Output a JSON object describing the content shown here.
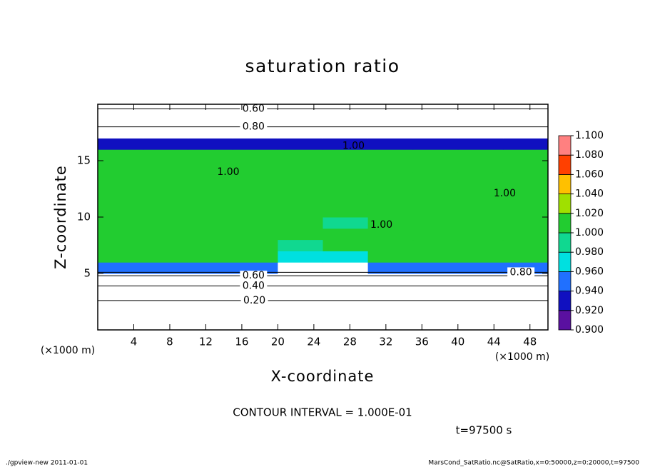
{
  "chart_data": {
    "type": "contour",
    "title": "saturation ratio",
    "xlabel": "X-coordinate",
    "ylabel": "Z-coordinate",
    "xunit": "(×1000 m)",
    "yunit": "(×1000 m)",
    "xlim": [
      0,
      50
    ],
    "ylim": [
      0,
      20
    ],
    "xticks": [
      4,
      8,
      12,
      16,
      20,
      24,
      28,
      32,
      36,
      40,
      44,
      48
    ],
    "yticks": [
      5,
      10,
      15
    ],
    "x": [
      2.5,
      7.5,
      12.5,
      17.5,
      22.5,
      27.5,
      32.5,
      37.5,
      42.5,
      47.5
    ],
    "y": [
      0.5,
      1.5,
      2.5,
      3.5,
      4.5,
      5.5,
      6.5,
      7.5,
      8.5,
      9.5,
      10.5,
      11.5,
      12.5,
      13.5,
      14.5,
      15.5,
      16.5,
      17.5,
      18.5,
      19.5
    ],
    "z_values": [
      [
        0.1,
        0.1,
        0.1,
        0.1,
        0.1,
        0.1,
        0.1,
        0.1,
        0.1,
        0.1
      ],
      [
        0.15,
        0.15,
        0.15,
        0.15,
        0.15,
        0.15,
        0.15,
        0.15,
        0.15,
        0.15
      ],
      [
        0.25,
        0.25,
        0.25,
        0.25,
        0.25,
        0.25,
        0.25,
        0.25,
        0.25,
        0.25
      ],
      [
        0.4,
        0.4,
        0.4,
        0.4,
        0.4,
        0.4,
        0.4,
        0.4,
        0.4,
        0.4
      ],
      [
        0.6,
        0.6,
        0.6,
        0.6,
        0.6,
        0.6,
        0.6,
        0.6,
        0.6,
        0.6
      ],
      [
        0.95,
        0.95,
        0.95,
        0.95,
        0.85,
        0.85,
        0.95,
        0.95,
        0.95,
        0.95
      ],
      [
        1.005,
        1.005,
        1.005,
        1.005,
        0.97,
        0.96,
        1.005,
        1.005,
        1.005,
        1.005
      ],
      [
        1.005,
        1.005,
        1.005,
        1.005,
        0.99,
        1.005,
        1.005,
        1.005,
        1.005,
        1.005
      ],
      [
        1.005,
        1.005,
        1.005,
        1.005,
        1.005,
        1.005,
        1.005,
        1.005,
        1.005,
        1.005
      ],
      [
        1.005,
        1.005,
        1.005,
        1.005,
        1.005,
        0.99,
        1.005,
        1.005,
        1.005,
        1.005
      ],
      [
        1.005,
        1.005,
        1.005,
        1.005,
        1.005,
        1.005,
        1.005,
        1.005,
        1.005,
        1.005
      ],
      [
        1.005,
        1.005,
        1.005,
        1.005,
        1.005,
        1.005,
        1.005,
        1.005,
        1.005,
        1.005
      ],
      [
        1.005,
        1.005,
        1.005,
        1.005,
        1.005,
        1.005,
        1.005,
        1.005,
        1.005,
        1.005
      ],
      [
        1.005,
        1.005,
        1.005,
        1.005,
        1.005,
        1.005,
        1.005,
        1.005,
        1.005,
        1.005
      ],
      [
        1.005,
        1.005,
        1.005,
        1.005,
        1.005,
        1.005,
        1.005,
        1.005,
        1.005,
        1.005
      ],
      [
        1.005,
        1.005,
        1.005,
        1.005,
        1.005,
        1.005,
        1.005,
        1.005,
        1.005,
        1.005
      ],
      [
        0.93,
        0.93,
        0.93,
        0.93,
        0.93,
        0.93,
        0.93,
        0.93,
        0.93,
        0.93
      ],
      [
        0.8,
        0.8,
        0.8,
        0.8,
        0.8,
        0.8,
        0.8,
        0.8,
        0.8,
        0.8
      ],
      [
        0.7,
        0.7,
        0.7,
        0.7,
        0.7,
        0.7,
        0.7,
        0.7,
        0.7,
        0.7
      ],
      [
        0.6,
        0.6,
        0.6,
        0.6,
        0.6,
        0.6,
        0.6,
        0.6,
        0.6,
        0.6
      ]
    ],
    "colorbar": {
      "ticks": [
        {
          "value": 0.9,
          "label": "0.900"
        },
        {
          "value": 0.92,
          "label": "0.920"
        },
        {
          "value": 0.94,
          "label": "0.940"
        },
        {
          "value": 0.96,
          "label": "0.960"
        },
        {
          "value": 0.98,
          "label": "0.980"
        },
        {
          "value": 1.0,
          "label": "1.000"
        },
        {
          "value": 1.02,
          "label": "1.020"
        },
        {
          "value": 1.04,
          "label": "1.040"
        },
        {
          "value": 1.06,
          "label": "1.060"
        },
        {
          "value": 1.08,
          "label": "1.080"
        },
        {
          "value": 1.1,
          "label": "1.100"
        }
      ],
      "colors": [
        "#5a10a0",
        "#1010c0",
        "#2070ff",
        "#00e0e0",
        "#10d890",
        "#22cc30",
        "#a0e000",
        "#ffc000",
        "#ff4000",
        "#ff8080"
      ]
    },
    "annotations": [
      {
        "text": "0.60",
        "x": 17.3,
        "y": 19.6
      },
      {
        "text": "0.80",
        "x": 17.3,
        "y": 18.0
      },
      {
        "text": "1.00",
        "x": 28.4,
        "y": 16.3
      },
      {
        "text": "1.00",
        "x": 14.5,
        "y": 14.0
      },
      {
        "text": "1.00",
        "x": 31.5,
        "y": 9.3
      },
      {
        "text": "1.00",
        "x": 45.2,
        "y": 12.1
      },
      {
        "text": "0.80",
        "x": 47.0,
        "y": 5.1
      },
      {
        "text": "0.60",
        "x": 17.3,
        "y": 4.8
      },
      {
        "text": "0.40",
        "x": 17.3,
        "y": 3.9
      },
      {
        "text": "0.20",
        "x": 17.4,
        "y": 2.6
      }
    ],
    "contour_interval": "CONTOUR INTERVAL = 1.000E-01",
    "time": "t=97500 s",
    "footer_left": "./gpview-new  2011-01-01",
    "footer_right": "MarsCond_SatRatio.nc@SatRatio,x=0:50000,z=0:20000,t=97500"
  }
}
